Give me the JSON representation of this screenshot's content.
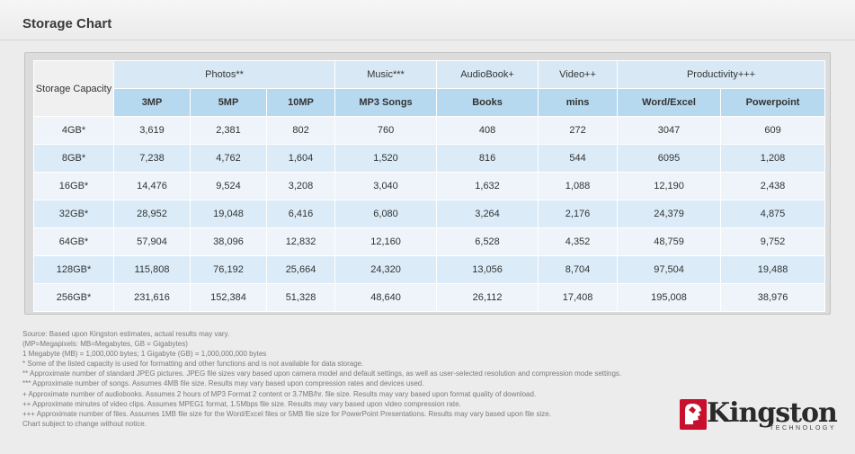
{
  "page": {
    "title": "Storage Chart"
  },
  "table": {
    "capacity_header": "Storage Capacity",
    "groups": [
      "Photos**",
      "Music***",
      "AudioBook+",
      "Video++",
      "Productivity+++"
    ],
    "subheaders": [
      "3MP",
      "5MP",
      "10MP",
      "MP3 Songs",
      "Books",
      "mins",
      "Word/Excel",
      "Powerpoint"
    ],
    "rows": [
      [
        "4GB*",
        "3,619",
        "2,381",
        "802",
        "760",
        "408",
        "272",
        "3047",
        "609"
      ],
      [
        "8GB*",
        "7,238",
        "4,762",
        "1,604",
        "1,520",
        "816",
        "544",
        "6095",
        "1,208"
      ],
      [
        "16GB*",
        "14,476",
        "9,524",
        "3,208",
        "3,040",
        "1,632",
        "1,088",
        "12,190",
        "2,438"
      ],
      [
        "32GB*",
        "28,952",
        "19,048",
        "6,416",
        "6,080",
        "3,264",
        "2,176",
        "24,379",
        "4,875"
      ],
      [
        "64GB*",
        "57,904",
        "38,096",
        "12,832",
        "12,160",
        "6,528",
        "4,352",
        "48,759",
        "9,752"
      ],
      [
        "128GB*",
        "115,808",
        "76,192",
        "25,664",
        "24,320",
        "13,056",
        "8,704",
        "97,504",
        "19,488"
      ],
      [
        "256GB*",
        "231,616",
        "152,384",
        "51,328",
        "48,640",
        "26,112",
        "17,408",
        "195,008",
        "38,976"
      ]
    ]
  },
  "notes": [
    "Source: Based upon Kingston estimates, actual results may vary.",
    "(MP=Megapixels: MB=Megabytes, GB = Gigabytes)",
    "1 Megabyte (MB) = 1,000,000 bytes; 1 Gigabyte (GB) = 1,000,000,000 bytes",
    "* Some of the listed capacity is used for formatting and other functions and is not available for data storage.",
    "** Approximate number of standard JPEG pictures. JPEG file sizes vary based upon camera model and default settings, as well as user-selected resolution and compression mode settings.",
    "*** Approximate number of songs. Assumes 4MB file size. Results may vary based upon compression rates and devices used.",
    "+ Approximate number of audiobooks. Assumes 2 hours of MP3 Format 2 content or 3.7MB/hr. file size. Results may vary based upon format quality of download.",
    "++ Approximate minutes of video clips. Assumes MPEG1 format, 1.5Mbps file size. Results may vary based upon video compression rate.",
    "+++ Approximate number of files. Assumes 1MB file size for the Word/Excel files or 5MB file size for PowerPoint Presentations. Results may vary based upon file size.",
    "Chart subject to change without notice."
  ],
  "logo": {
    "word": "Kingston",
    "sub": "TECHNOLOGY",
    "brand_color": "#c8102e"
  }
}
